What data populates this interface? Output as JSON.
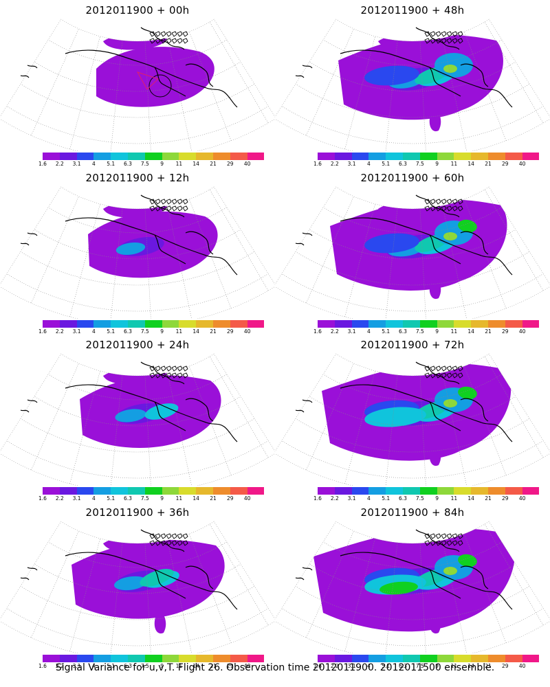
{
  "caption": "Signal Variance for u,v,T. Flight 26. Observation time 2012011900. 2012011500 ensemble.",
  "colorbar": {
    "labels": [
      "1.6",
      "2.2",
      "3.1",
      "4",
      "5.1",
      "6.3",
      "7.5",
      "9",
      "11",
      "14",
      "21",
      "29",
      "40"
    ],
    "colors": [
      "#9a10d8",
      "#6a18e0",
      "#2a48ef",
      "#149ee2",
      "#10c4dc",
      "#10c8b0",
      "#10d020",
      "#8ed83a",
      "#d8dc2c",
      "#e6b82c",
      "#ee8c2c",
      "#f45a48",
      "#f01888"
    ]
  },
  "panels": [
    {
      "title": "2012011900 + 00h",
      "intensity": 0
    },
    {
      "title": "2012011900 + 48h",
      "intensity": 4
    },
    {
      "title": "2012011900 + 12h",
      "intensity": 1
    },
    {
      "title": "2012011900 + 60h",
      "intensity": 5
    },
    {
      "title": "2012011900 + 24h",
      "intensity": 2
    },
    {
      "title": "2012011900 + 72h",
      "intensity": 6
    },
    {
      "title": "2012011900 + 36h",
      "intensity": 3
    },
    {
      "title": "2012011900 + 84h",
      "intensity": 7
    }
  ]
}
